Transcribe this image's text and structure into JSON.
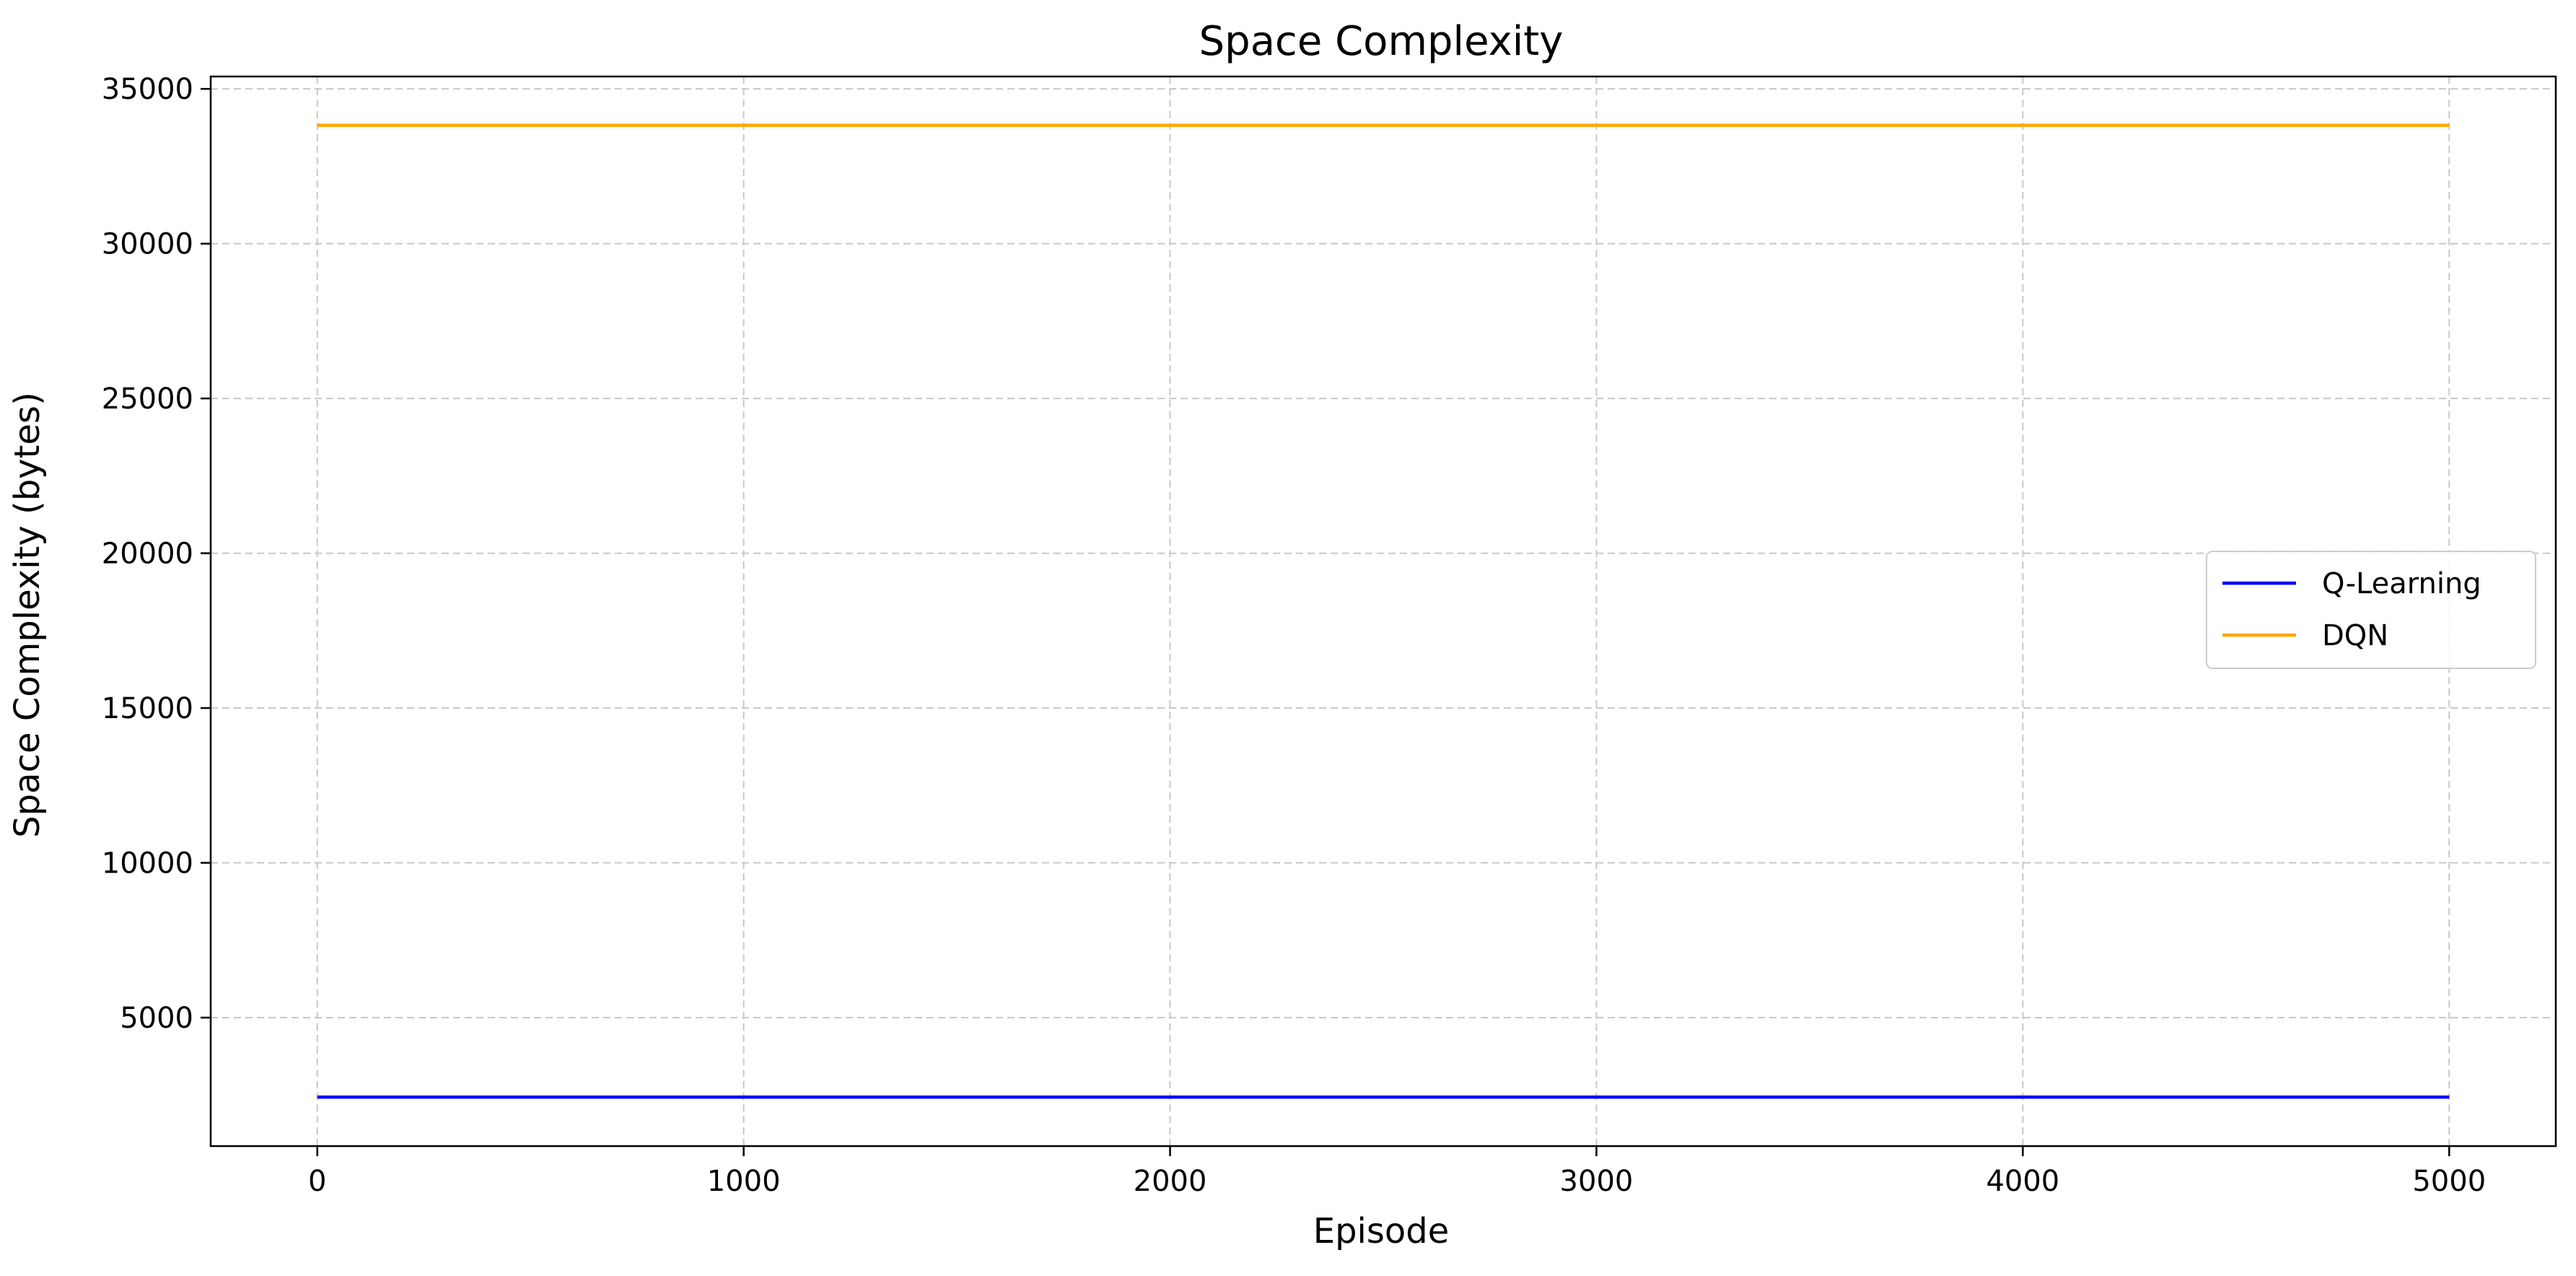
{
  "chart_data": {
    "type": "line",
    "title": "Space Complexity",
    "xlabel": "Episode",
    "ylabel": "Space Complexity (bytes)",
    "xlim": [
      -250,
      5250
    ],
    "ylim": [
      850,
      35400
    ],
    "xticks": [
      0,
      1000,
      2000,
      3000,
      4000,
      5000
    ],
    "yticks": [
      5000,
      10000,
      15000,
      20000,
      25000,
      30000,
      35000
    ],
    "grid": true,
    "legend_position": "center-right",
    "x": [
      0,
      5000
    ],
    "series": [
      {
        "name": "Q-Learning",
        "color": "#0000ff",
        "values": [
          2432,
          2432
        ]
      },
      {
        "name": "DQN",
        "color": "#ffa500",
        "values": [
          33824,
          33824
        ]
      }
    ]
  }
}
